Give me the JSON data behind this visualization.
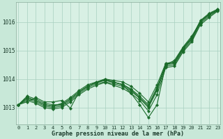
{
  "background_color": "#c8e8d8",
  "plot_bg_color": "#d8f0e4",
  "grid_color": "#a8cfc0",
  "line_color": "#1a6b2a",
  "xlabel": "Graphe pression niveau de la mer (hPa)",
  "ylim": [
    1012.4,
    1016.7
  ],
  "yticks": [
    1013,
    1014,
    1015,
    1016
  ],
  "xticks": [
    0,
    1,
    2,
    3,
    4,
    5,
    6,
    7,
    8,
    9,
    10,
    11,
    12,
    13,
    14,
    15,
    16,
    17,
    18,
    19,
    20,
    21,
    22,
    23
  ],
  "series": [
    [
      1013.1,
      1013.35,
      1013.25,
      1013.1,
      1013.05,
      1013.15,
      1013.35,
      1013.6,
      1013.8,
      1013.9,
      1014.0,
      1013.95,
      1013.9,
      1013.75,
      1013.5,
      1013.2,
      1013.8,
      1014.55,
      1014.6,
      1015.1,
      1015.45,
      1016.05,
      1016.3,
      1016.45
    ],
    [
      1013.1,
      1013.35,
      1013.25,
      1013.1,
      1013.05,
      1013.1,
      1013.3,
      1013.55,
      1013.75,
      1013.87,
      1013.95,
      1013.88,
      1013.82,
      1013.65,
      1013.4,
      1013.1,
      1013.7,
      1014.5,
      1014.55,
      1015.05,
      1015.4,
      1016.0,
      1016.25,
      1016.42
    ],
    [
      1013.1,
      1013.3,
      1013.2,
      1013.05,
      1013.0,
      1013.05,
      1013.25,
      1013.5,
      1013.7,
      1013.83,
      1013.9,
      1013.83,
      1013.75,
      1013.58,
      1013.32,
      1013.0,
      1013.6,
      1014.45,
      1014.5,
      1015.0,
      1015.35,
      1015.95,
      1016.2,
      1016.4
    ],
    [
      1013.1,
      1013.25,
      1013.15,
      1013.0,
      1012.95,
      1013.0,
      1013.2,
      1013.45,
      1013.65,
      1013.78,
      1013.88,
      1013.78,
      1013.68,
      1013.5,
      1013.25,
      1012.88,
      1013.45,
      1014.4,
      1014.45,
      1014.95,
      1015.3,
      1015.9,
      1016.15,
      1016.38
    ],
    [
      1013.1,
      1013.4,
      1013.3,
      1013.15,
      1013.1,
      1013.1,
      1013.3,
      1013.55,
      1013.75,
      1013.88,
      1013.97,
      1013.88,
      1013.8,
      1013.62,
      1013.35,
      1013.05,
      1013.65,
      1014.52,
      1014.57,
      1015.07,
      1015.42,
      1016.02,
      1016.27,
      1016.43
    ],
    [
      1013.1,
      1013.2,
      1013.35,
      1013.2,
      1013.2,
      1013.25,
      1012.98,
      1013.55,
      1013.75,
      1013.88,
      1014.0,
      1013.9,
      1013.8,
      1013.5,
      1013.1,
      1012.65,
      1013.1,
      1014.5,
      1014.65,
      1015.12,
      1015.5,
      1016.0,
      1016.25,
      1016.42
    ]
  ]
}
